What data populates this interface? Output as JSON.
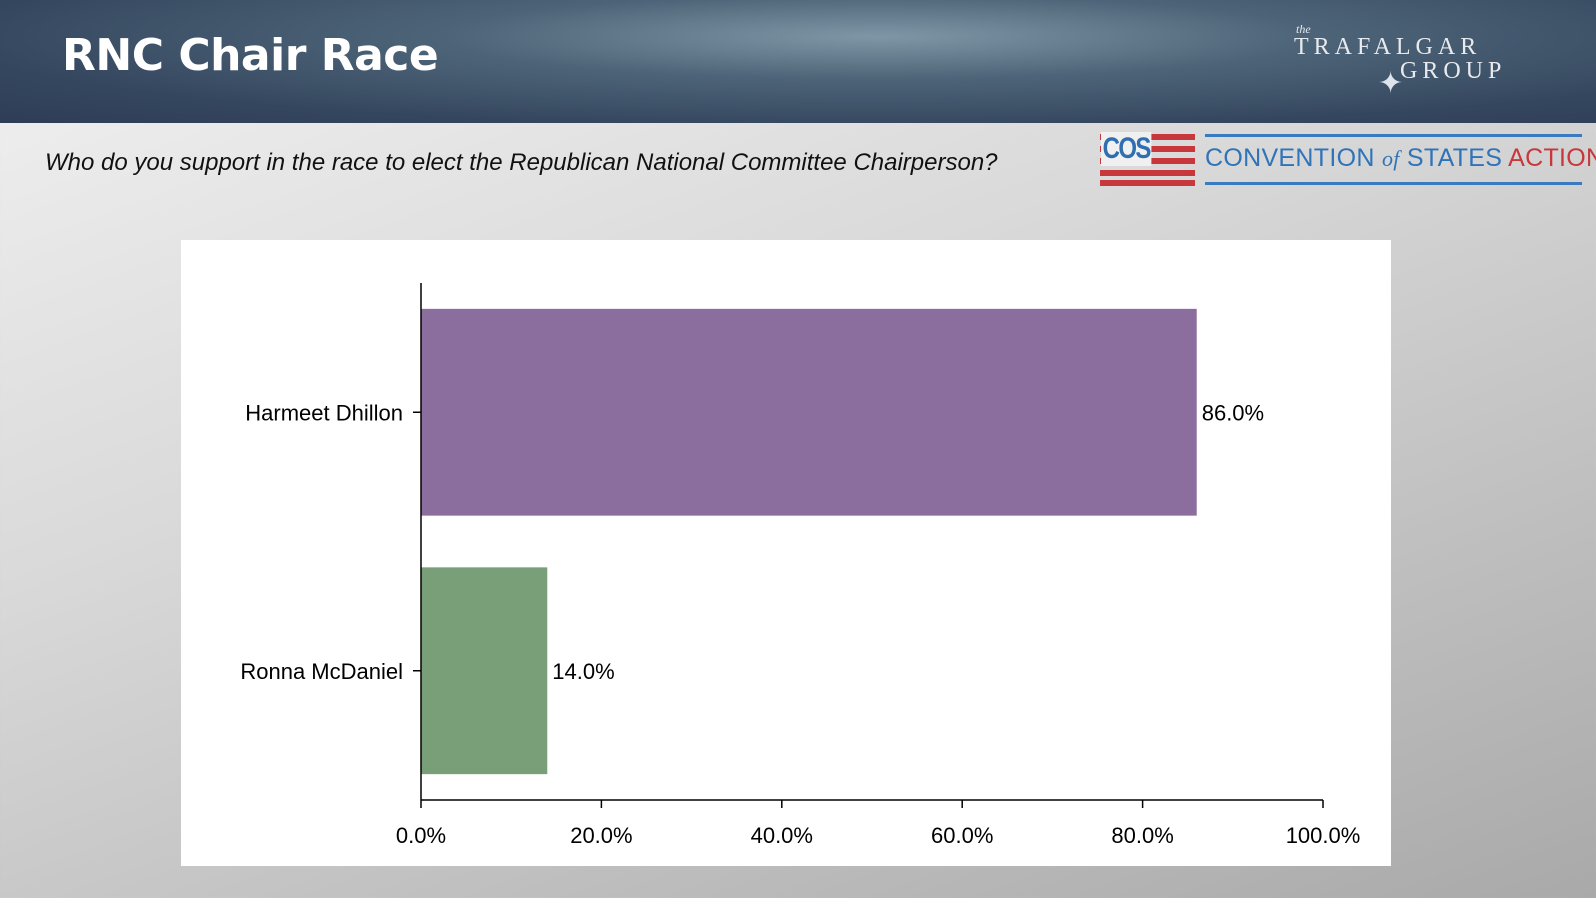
{
  "header": {
    "title": "RNC Chair Race",
    "logo": {
      "the": "the",
      "line1": "TRAFALGAR",
      "line2": "GROUP"
    }
  },
  "question": "Who do you support in the race to elect the Republican National Committee Chairperson?",
  "sponsor": {
    "abbr": "COS",
    "name_part1": "CONVENTION",
    "name_of": "of",
    "name_part2": "STATES",
    "name_part3": "ACTION"
  },
  "chart_data": {
    "type": "bar",
    "orientation": "horizontal",
    "categories": [
      "Harmeet Dhillon",
      "Ronna McDaniel"
    ],
    "values": [
      86.0,
      14.0
    ],
    "value_labels": [
      "86.0%",
      "14.0%"
    ],
    "colors": [
      "#8b6e9e",
      "#789f78"
    ],
    "xlim": [
      0,
      100
    ],
    "xticks": [
      "0.0%",
      "20.0%",
      "40.0%",
      "60.0%",
      "80.0%",
      "100.0%"
    ],
    "grid": false
  }
}
